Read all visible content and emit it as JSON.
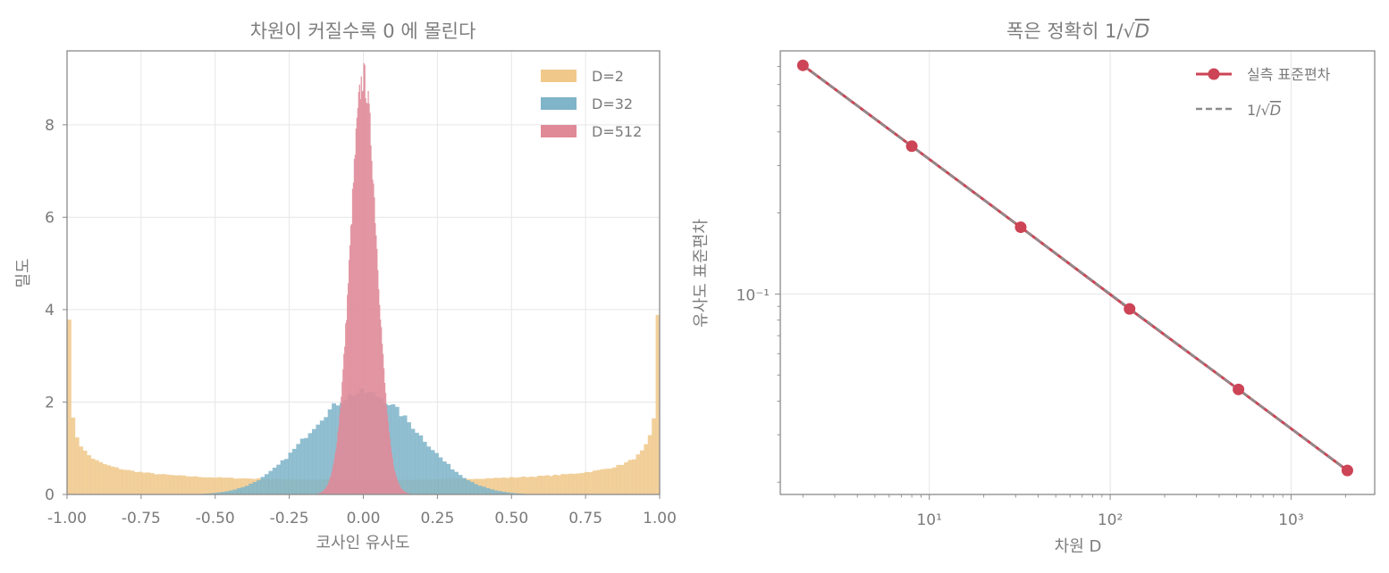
{
  "chart_data": [
    {
      "type": "histogram",
      "title": "차원이 커질수록 0 에 몰린다",
      "xlabel": "코사인 유사도",
      "ylabel": "밀도",
      "xlim": [
        -1.0,
        1.0
      ],
      "ylim": [
        0,
        9.6
      ],
      "xticks": [
        -1.0,
        -0.75,
        -0.5,
        -0.25,
        0.0,
        0.25,
        0.5,
        0.75,
        1.0
      ],
      "xtick_labels": [
        "-1.00",
        "-0.75",
        "-0.50",
        "-0.25",
        "0.00",
        "0.25",
        "0.50",
        "0.75",
        "1.00"
      ],
      "yticks": [
        0,
        2,
        4,
        6,
        8
      ],
      "ytick_labels": [
        "0",
        "2",
        "4",
        "6",
        "8"
      ],
      "grid": true,
      "legend_position": "top-right",
      "series": [
        {
          "name": "D=2",
          "color": "#f0c88a",
          "distribution": "arcsine",
          "dimension": 2
        },
        {
          "name": "D=32",
          "color": "#7fb4c9",
          "distribution": "beta-like",
          "dimension": 32
        },
        {
          "name": "D=512",
          "color": "#e08a98",
          "distribution": "beta-like",
          "dimension": 512
        }
      ]
    },
    {
      "type": "line",
      "title": "폭은 정확히 1/√D",
      "xlabel": "차원 D",
      "ylabel": "유사도 표준편차",
      "xscale": "log",
      "yscale": "log",
      "xlim": [
        1.5,
        2900
      ],
      "ylim": [
        0.018,
        0.8
      ],
      "xtick_labels": [
        "10¹",
        "10²",
        "10³"
      ],
      "ytick_labels": [
        "10⁻¹"
      ],
      "grid": true,
      "legend_position": "top-right",
      "x": [
        2,
        8,
        32,
        128,
        512,
        2048
      ],
      "series": [
        {
          "name": "실측 표준편차",
          "color": "#cc4455",
          "marker": "circle",
          "values": [
            0.707,
            0.354,
            0.177,
            0.088,
            0.0442,
            0.0221
          ]
        },
        {
          "name": "1/√D",
          "color": "#8c8c8c",
          "style": "dashed",
          "values": [
            0.7071,
            0.3536,
            0.1768,
            0.0884,
            0.0442,
            0.0221
          ]
        }
      ]
    }
  ]
}
